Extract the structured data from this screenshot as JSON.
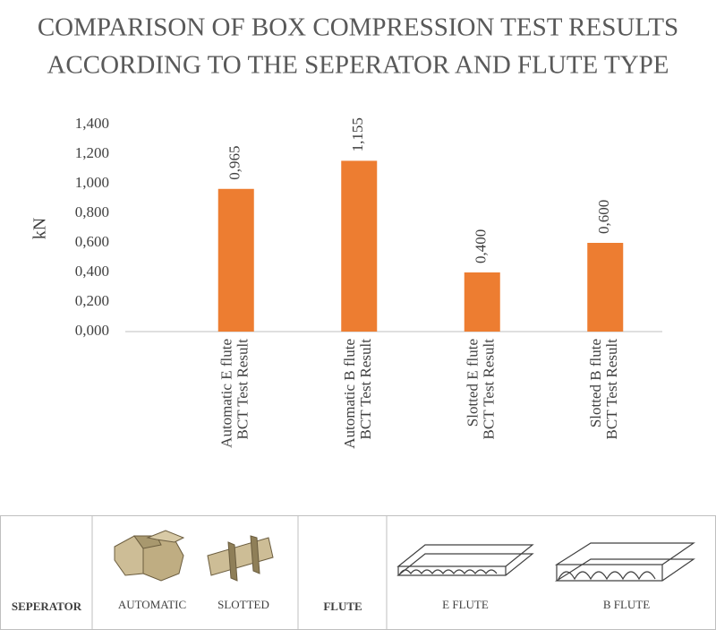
{
  "chart_data": {
    "type": "bar",
    "title": [
      "COMPARISON OF BOX COMPRESSION TEST RESULTS",
      "ACCORDING TO THE SEPERATOR AND FLUTE TYPE"
    ],
    "y_label": "kN",
    "categories": [
      [
        "Automatic E flute",
        "BCT Test Result"
      ],
      [
        "Automatic B flute",
        "BCT Test Result"
      ],
      [
        "Slotted E flute",
        "BCT Test Result"
      ],
      [
        "Slotted B flute",
        "BCT Test Result"
      ]
    ],
    "values": [
      0.965,
      1.155,
      0.4,
      0.6
    ],
    "value_labels": [
      "0,965",
      "1,155",
      "0,400",
      "0,600"
    ],
    "color": "#ed7d31",
    "ylim": [
      0,
      1.4
    ],
    "yticks": [
      {
        "value": 0,
        "label": "0,000"
      },
      {
        "value": 0.2,
        "label": "0,200"
      },
      {
        "value": 0.4,
        "label": "0,400"
      },
      {
        "value": 0.6,
        "label": "0,600"
      },
      {
        "value": 0.8,
        "label": "0,800"
      },
      {
        "value": 1.0,
        "label": "1,000"
      },
      {
        "value": 1.2,
        "label": "1,200"
      },
      {
        "value": 1.4,
        "label": "1,400"
      }
    ],
    "grid": false
  },
  "legend_panel": {
    "separator_heading": "SEPERATOR",
    "separator_types": [
      "AUTOMATIC",
      "SLOTTED"
    ],
    "flute_heading": "FLUTE",
    "flute_types": [
      "E FLUTE",
      "B FLUTE"
    ]
  }
}
